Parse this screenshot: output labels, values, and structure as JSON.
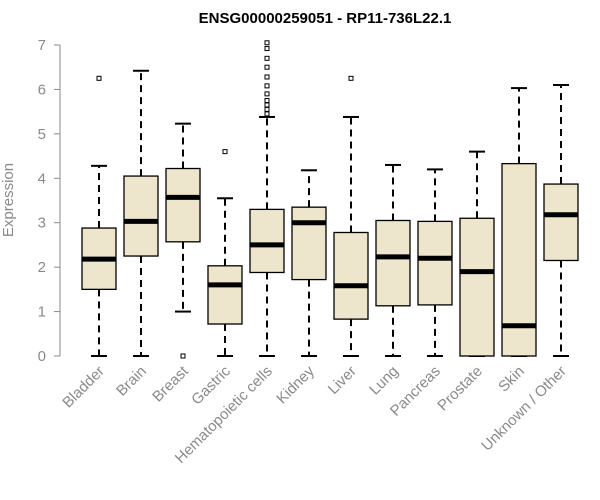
{
  "chart_data": {
    "type": "box",
    "title": "ENSG00000259051 - RP11-736L22.1",
    "xlabel": "",
    "ylabel": "Expression",
    "ylim": [
      0,
      7
    ],
    "yticks": [
      "0",
      "1",
      "2",
      "3",
      "4",
      "5",
      "6",
      "7"
    ],
    "categories": [
      "Bladder",
      "Brain",
      "Breast",
      "Gastric",
      "Hematopoietic cells",
      "Kidney",
      "Liver",
      "Lung",
      "Pancreas",
      "Prostate",
      "Skin",
      "Unknown / Other"
    ],
    "boxes": [
      {
        "min": 0.0,
        "q1": 1.5,
        "median": 2.18,
        "q3": 2.88,
        "max": 4.28,
        "outliers": [
          6.25
        ]
      },
      {
        "min": 0.0,
        "q1": 2.25,
        "median": 3.03,
        "q3": 4.05,
        "max": 6.42,
        "outliers": []
      },
      {
        "min": 1.0,
        "q1": 2.57,
        "median": 3.57,
        "q3": 4.22,
        "max": 5.23,
        "outliers": [
          0.0
        ]
      },
      {
        "min": 0.0,
        "q1": 0.72,
        "median": 1.6,
        "q3": 2.03,
        "max": 3.55,
        "outliers": [
          4.6
        ]
      },
      {
        "min": 0.0,
        "q1": 1.88,
        "median": 2.5,
        "q3": 3.3,
        "max": 5.38,
        "outliers": [
          5.45,
          5.55,
          5.65,
          5.75,
          5.9,
          6.08,
          6.28,
          6.5,
          6.7,
          6.92,
          7.05
        ]
      },
      {
        "min": 0.0,
        "q1": 1.72,
        "median": 3.0,
        "q3": 3.35,
        "max": 4.18,
        "outliers": []
      },
      {
        "min": 0.0,
        "q1": 0.83,
        "median": 1.58,
        "q3": 2.78,
        "max": 5.38,
        "outliers": [
          6.25
        ]
      },
      {
        "min": 0.0,
        "q1": 1.13,
        "median": 2.23,
        "q3": 3.05,
        "max": 4.3,
        "outliers": []
      },
      {
        "min": 0.0,
        "q1": 1.15,
        "median": 2.2,
        "q3": 3.03,
        "max": 4.2,
        "outliers": []
      },
      {
        "min": 0.0,
        "q1": 0.0,
        "median": 1.9,
        "q3": 3.1,
        "max": 4.6,
        "outliers": []
      },
      {
        "min": 0.0,
        "q1": 0.0,
        "median": 0.68,
        "q3": 4.33,
        "max": 6.03,
        "outliers": []
      },
      {
        "min": 0.0,
        "q1": 2.15,
        "median": 3.18,
        "q3": 3.87,
        "max": 6.1,
        "outliers": []
      }
    ],
    "colors": {
      "box_fill": "#ede6cc",
      "stroke": "#000000",
      "axis": "#8a8a8a"
    },
    "grid": false
  }
}
